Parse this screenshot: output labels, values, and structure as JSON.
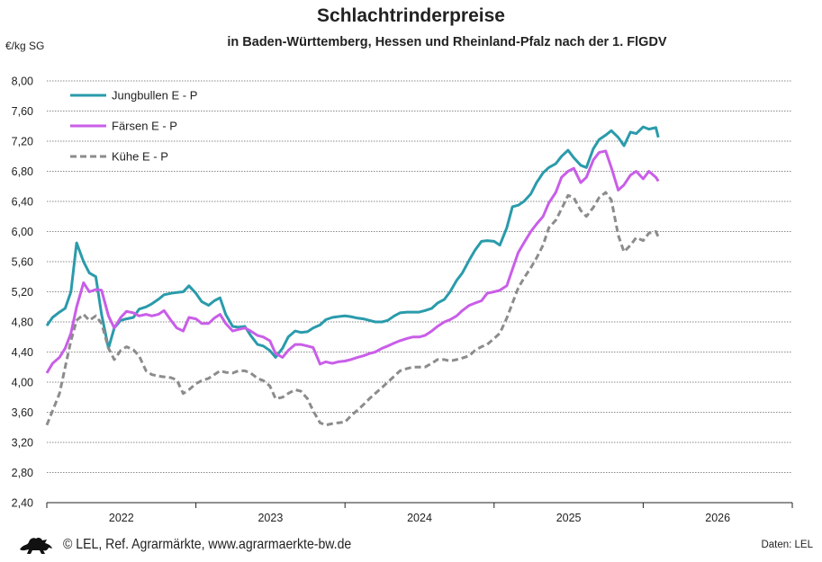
{
  "chart_data": {
    "type": "line",
    "title": "Schlachtrinderpreise",
    "subtitle": "in Baden-Württemberg, Hessen und Rheinland-Pfalz nach der 1. FlGDV",
    "ylabel": "€/kg SG",
    "xlabel": "",
    "ylim": [
      2.4,
      8.0
    ],
    "yticks": [
      "2,40",
      "2,80",
      "3,20",
      "3,60",
      "4,00",
      "4,40",
      "4,80",
      "5,20",
      "5,60",
      "6,00",
      "6,40",
      "6,80",
      "7,20",
      "7,60",
      "8,00"
    ],
    "xlim": [
      "2022-01-01",
      "2027-01-01"
    ],
    "xticks": [
      "2022",
      "2023",
      "2024",
      "2025",
      "2026"
    ],
    "grid": true,
    "legend_position": "top-left",
    "x": [
      "2022-01-01",
      "2022-01-15",
      "2022-02-01",
      "2022-02-15",
      "2022-03-01",
      "2022-03-15",
      "2022-04-01",
      "2022-04-15",
      "2022-05-01",
      "2022-05-15",
      "2022-06-01",
      "2022-06-15",
      "2022-07-01",
      "2022-07-15",
      "2022-08-01",
      "2022-08-15",
      "2022-09-01",
      "2022-09-15",
      "2022-10-01",
      "2022-10-15",
      "2022-11-01",
      "2022-11-15",
      "2022-12-01",
      "2022-12-15",
      "2023-01-01",
      "2023-01-15",
      "2023-02-01",
      "2023-02-15",
      "2023-03-01",
      "2023-03-15",
      "2023-04-01",
      "2023-04-15",
      "2023-05-01",
      "2023-05-15",
      "2023-06-01",
      "2023-06-15",
      "2023-07-01",
      "2023-07-15",
      "2023-08-01",
      "2023-08-15",
      "2023-09-01",
      "2023-09-15",
      "2023-10-01",
      "2023-10-15",
      "2023-11-01",
      "2023-11-15",
      "2023-12-01",
      "2023-12-15",
      "2024-01-01",
      "2024-01-15",
      "2024-02-01",
      "2024-02-15",
      "2024-03-01",
      "2024-03-15",
      "2024-04-01",
      "2024-04-15",
      "2024-05-01",
      "2024-05-15",
      "2024-06-01",
      "2024-06-15",
      "2024-07-01",
      "2024-07-15",
      "2024-08-01",
      "2024-08-15",
      "2024-09-01",
      "2024-09-15",
      "2024-10-01",
      "2024-10-15",
      "2024-11-01",
      "2024-11-15",
      "2024-12-01",
      "2024-12-15",
      "2025-01-01",
      "2025-01-15",
      "2025-02-01",
      "2025-02-15",
      "2025-03-01",
      "2025-03-15",
      "2025-04-01",
      "2025-04-15",
      "2025-05-01",
      "2025-05-15",
      "2025-06-01",
      "2025-06-15",
      "2025-07-01",
      "2025-07-15",
      "2025-08-01",
      "2025-08-15",
      "2025-09-01",
      "2025-09-15",
      "2025-10-01",
      "2025-10-15",
      "2025-11-01",
      "2025-11-15",
      "2025-12-01",
      "2025-12-15",
      "2026-01-01",
      "2026-01-15",
      "2026-02-01",
      "2026-02-07"
    ],
    "series": [
      {
        "name": "Jungbullen E - P",
        "color": "#2a9bab",
        "dash": "solid",
        "values": [
          4.75,
          4.86,
          4.93,
          4.98,
          5.2,
          5.85,
          5.6,
          5.45,
          5.4,
          4.9,
          4.45,
          4.72,
          4.82,
          4.84,
          4.86,
          4.97,
          5.0,
          5.04,
          5.1,
          5.16,
          5.18,
          5.19,
          5.2,
          5.28,
          5.18,
          5.07,
          5.02,
          5.08,
          5.12,
          4.9,
          4.74,
          4.73,
          4.74,
          4.62,
          4.5,
          4.48,
          4.42,
          4.33,
          4.45,
          4.6,
          4.68,
          4.66,
          4.67,
          4.72,
          4.76,
          4.83,
          4.86,
          4.87,
          4.88,
          4.87,
          4.85,
          4.84,
          4.82,
          4.8,
          4.8,
          4.82,
          4.88,
          4.92,
          4.93,
          4.93,
          4.93,
          4.95,
          4.98,
          5.05,
          5.1,
          5.2,
          5.35,
          5.45,
          5.62,
          5.75,
          5.87,
          5.88,
          5.87,
          5.82,
          6.05,
          6.33,
          6.35,
          6.4,
          6.5,
          6.65,
          6.78,
          6.85,
          6.9,
          7.0,
          7.08,
          6.98,
          6.88,
          6.85,
          7.1,
          7.22,
          7.28,
          7.34,
          7.25,
          7.14,
          7.32,
          7.3,
          7.39,
          7.36,
          7.38,
          7.25
        ]
      },
      {
        "name": "Färsen E - P",
        "color": "#c95ee8",
        "dash": "solid",
        "values": [
          4.12,
          4.25,
          4.33,
          4.45,
          4.65,
          5.0,
          5.32,
          5.2,
          5.23,
          5.22,
          4.88,
          4.72,
          4.86,
          4.94,
          4.92,
          4.88,
          4.9,
          4.88,
          4.9,
          4.95,
          4.82,
          4.72,
          4.68,
          4.86,
          4.84,
          4.78,
          4.78,
          4.85,
          4.9,
          4.78,
          4.68,
          4.7,
          4.72,
          4.68,
          4.62,
          4.6,
          4.55,
          4.38,
          4.33,
          4.42,
          4.5,
          4.5,
          4.48,
          4.46,
          4.24,
          4.27,
          4.25,
          4.27,
          4.28,
          4.3,
          4.33,
          4.35,
          4.38,
          4.4,
          4.45,
          4.48,
          4.52,
          4.55,
          4.58,
          4.6,
          4.6,
          4.62,
          4.68,
          4.74,
          4.8,
          4.83,
          4.88,
          4.95,
          5.02,
          5.05,
          5.08,
          5.18,
          5.2,
          5.22,
          5.28,
          5.5,
          5.72,
          5.85,
          6.0,
          6.1,
          6.2,
          6.38,
          6.52,
          6.72,
          6.8,
          6.84,
          6.65,
          6.72,
          6.95,
          7.05,
          7.07,
          6.85,
          6.55,
          6.62,
          6.75,
          6.8,
          6.7,
          6.8,
          6.72,
          6.67
        ]
      },
      {
        "name": "Kühe E - P",
        "color": "#8c8c8c",
        "dash": "dashed",
        "values": [
          3.43,
          3.62,
          3.85,
          4.2,
          4.55,
          4.82,
          4.9,
          4.82,
          4.88,
          4.78,
          4.45,
          4.3,
          4.42,
          4.47,
          4.43,
          4.35,
          4.15,
          4.1,
          4.08,
          4.07,
          4.06,
          4.03,
          3.85,
          3.9,
          3.98,
          4.02,
          4.05,
          4.1,
          4.15,
          4.13,
          4.12,
          4.15,
          4.15,
          4.12,
          4.05,
          4.02,
          3.95,
          3.78,
          3.8,
          3.85,
          3.9,
          3.88,
          3.78,
          3.62,
          3.46,
          3.43,
          3.45,
          3.46,
          3.47,
          3.55,
          3.63,
          3.7,
          3.78,
          3.85,
          3.93,
          4.0,
          4.08,
          4.15,
          4.18,
          4.2,
          4.2,
          4.2,
          4.25,
          4.3,
          4.3,
          4.28,
          4.3,
          4.32,
          4.35,
          4.42,
          4.47,
          4.5,
          4.58,
          4.65,
          4.85,
          5.05,
          5.25,
          5.38,
          5.52,
          5.65,
          5.82,
          6.05,
          6.15,
          6.3,
          6.48,
          6.45,
          6.28,
          6.2,
          6.32,
          6.45,
          6.52,
          6.42,
          5.95,
          5.73,
          5.82,
          5.92,
          5.88,
          5.98,
          6.0,
          5.93
        ]
      }
    ]
  },
  "footer": {
    "logo_icon": "lion-coat-of-arms-icon",
    "credit": "© LEL, Ref. Agrarmärkte, www.agrarmaerkte-bw.de",
    "source": "Daten: LEL"
  }
}
